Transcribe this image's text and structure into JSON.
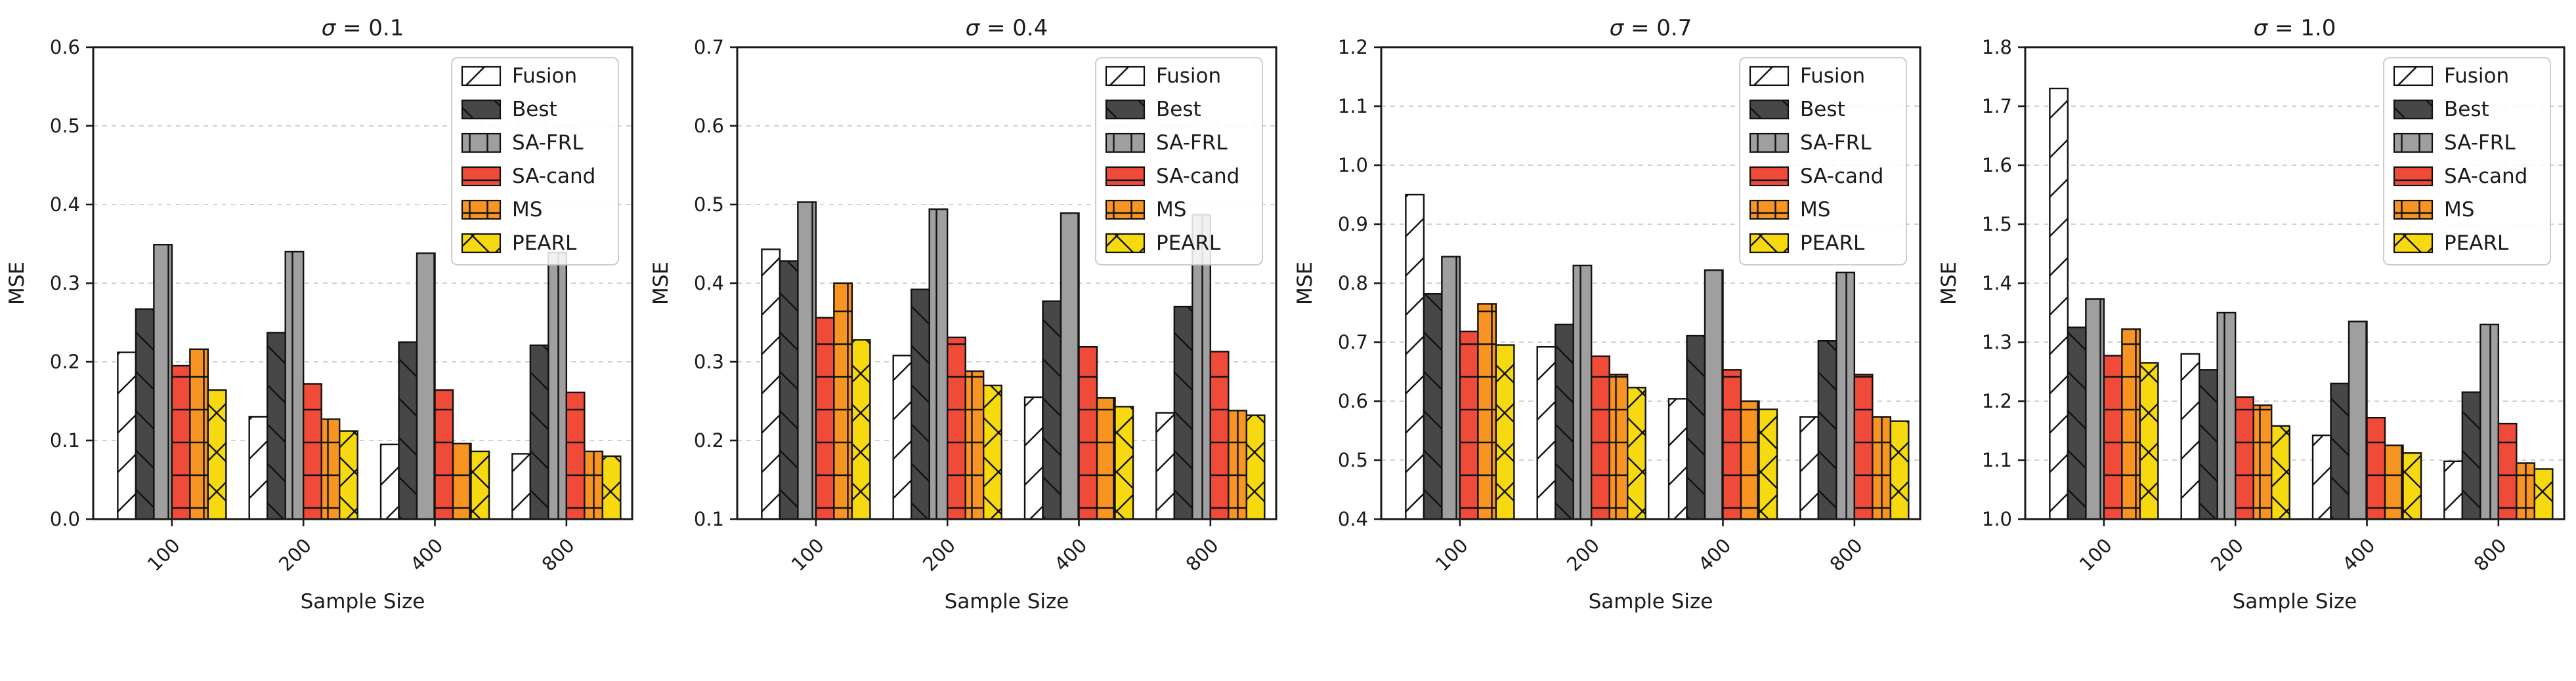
{
  "figure": {
    "xlabel": "Sample Size",
    "ylabel": "MSE",
    "categories": [
      "100",
      "200",
      "400",
      "800"
    ],
    "legend_labels": [
      "Fusion",
      "Best",
      "SA-FRL",
      "SA-cand",
      "MS",
      "PEARL"
    ],
    "series_styles": [
      {
        "name": "Fusion",
        "color": "#ffffff",
        "hatch": "/"
      },
      {
        "name": "Best",
        "color": "#474747",
        "hatch": "\\"
      },
      {
        "name": "SA-FRL",
        "color": "#9f9f9f",
        "hatch": "|"
      },
      {
        "name": "SA-cand",
        "color": "#f04a38",
        "hatch": "-"
      },
      {
        "name": "MS",
        "color": "#f89522",
        "hatch": "+"
      },
      {
        "name": "PEARL",
        "color": "#f6d90e",
        "hatch": "x"
      }
    ],
    "hatch_color": "#111111",
    "grid_color": "#c9c9c9",
    "spine_color": "#1a1a1a",
    "legend_border_color": "#cccccc"
  },
  "chart_data": [
    {
      "type": "bar",
      "title": "σ = 0.1",
      "xlabel": "Sample Size",
      "ylabel": "MSE",
      "categories": [
        "100",
        "200",
        "400",
        "800"
      ],
      "ylim": [
        0.0,
        0.6
      ],
      "ytick_step": 0.1,
      "grid": true,
      "legend_position": "upper right",
      "series": [
        {
          "name": "Fusion",
          "values": [
            0.212,
            0.13,
            0.095,
            0.083
          ]
        },
        {
          "name": "Best",
          "values": [
            0.267,
            0.237,
            0.225,
            0.221
          ]
        },
        {
          "name": "SA-FRL",
          "values": [
            0.349,
            0.34,
            0.338,
            0.339
          ]
        },
        {
          "name": "SA-cand",
          "values": [
            0.195,
            0.172,
            0.164,
            0.161
          ]
        },
        {
          "name": "MS",
          "values": [
            0.216,
            0.127,
            0.096,
            0.086
          ]
        },
        {
          "name": "PEARL",
          "values": [
            0.164,
            0.112,
            0.086,
            0.08
          ]
        }
      ]
    },
    {
      "type": "bar",
      "title": "σ = 0.4",
      "xlabel": "Sample Size",
      "ylabel": "MSE",
      "categories": [
        "100",
        "200",
        "400",
        "800"
      ],
      "ylim": [
        0.1,
        0.7
      ],
      "ytick_step": 0.1,
      "grid": true,
      "legend_position": "upper right",
      "series": [
        {
          "name": "Fusion",
          "values": [
            0.443,
            0.308,
            0.255,
            0.235
          ]
        },
        {
          "name": "Best",
          "values": [
            0.428,
            0.392,
            0.377,
            0.37
          ]
        },
        {
          "name": "SA-FRL",
          "values": [
            0.503,
            0.494,
            0.489,
            0.487
          ]
        },
        {
          "name": "SA-cand",
          "values": [
            0.356,
            0.331,
            0.319,
            0.313
          ]
        },
        {
          "name": "MS",
          "values": [
            0.4,
            0.288,
            0.254,
            0.238
          ]
        },
        {
          "name": "PEARL",
          "values": [
            0.328,
            0.27,
            0.243,
            0.232
          ]
        }
      ]
    },
    {
      "type": "bar",
      "title": "σ = 0.7",
      "xlabel": "Sample Size",
      "ylabel": "MSE",
      "categories": [
        "100",
        "200",
        "400",
        "800"
      ],
      "ylim": [
        0.4,
        1.2
      ],
      "ytick_step": 0.1,
      "grid": true,
      "legend_position": "upper right",
      "series": [
        {
          "name": "Fusion",
          "values": [
            0.95,
            0.692,
            0.604,
            0.573
          ]
        },
        {
          "name": "Best",
          "values": [
            0.782,
            0.73,
            0.711,
            0.702
          ]
        },
        {
          "name": "SA-FRL",
          "values": [
            0.845,
            0.83,
            0.822,
            0.818
          ]
        },
        {
          "name": "SA-cand",
          "values": [
            0.718,
            0.676,
            0.653,
            0.645
          ]
        },
        {
          "name": "MS",
          "values": [
            0.765,
            0.645,
            0.6,
            0.573
          ]
        },
        {
          "name": "PEARL",
          "values": [
            0.695,
            0.623,
            0.586,
            0.566
          ]
        }
      ]
    },
    {
      "type": "bar",
      "title": "σ = 1.0",
      "xlabel": "Sample Size",
      "ylabel": "MSE",
      "categories": [
        "100",
        "200",
        "400",
        "800"
      ],
      "ylim": [
        1.0,
        1.8
      ],
      "ytick_step": 0.1,
      "grid": true,
      "legend_position": "upper right",
      "series": [
        {
          "name": "Fusion",
          "values": [
            1.73,
            1.28,
            1.142,
            1.098
          ]
        },
        {
          "name": "Best",
          "values": [
            1.325,
            1.253,
            1.23,
            1.215
          ]
        },
        {
          "name": "SA-FRL",
          "values": [
            1.373,
            1.35,
            1.335,
            1.33
          ]
        },
        {
          "name": "SA-cand",
          "values": [
            1.277,
            1.207,
            1.172,
            1.162
          ]
        },
        {
          "name": "MS",
          "values": [
            1.322,
            1.193,
            1.125,
            1.095
          ]
        },
        {
          "name": "PEARL",
          "values": [
            1.265,
            1.158,
            1.112,
            1.085
          ]
        }
      ]
    }
  ]
}
